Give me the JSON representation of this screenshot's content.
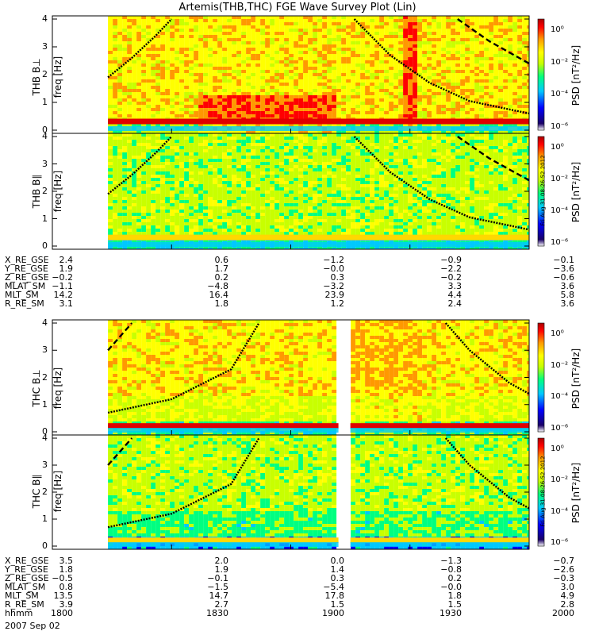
{
  "title": "Artemis(THB,THC) FGE Wave Survey Plot (Lin)",
  "colorbar": {
    "label": "PSD [nT²/Hz]",
    "ticks": [
      "10⁰",
      "10⁻²",
      "10⁻⁴",
      "10⁻⁶"
    ],
    "stops": [
      "#ffffff",
      "#1a0066",
      "#0000ff",
      "#00c8ff",
      "#00ff80",
      "#c8ff00",
      "#ffff00",
      "#ff9900",
      "#ff0000",
      "#aa0000"
    ]
  },
  "stamp": "Fri Aug 31 08:26:52 2012",
  "panels": [
    {
      "id": "thb-bperp",
      "ylabel": "THB B⊥",
      "freq_label": "freq [Hz]"
    },
    {
      "id": "thb-bpar",
      "ylabel": "THB B∥",
      "freq_label": "freq [Hz]"
    },
    {
      "id": "thc-bperp",
      "ylabel": "THC B⊥",
      "freq_label": "freq [Hz]"
    },
    {
      "id": "thc-bpar",
      "ylabel": "THC B∥",
      "freq_label": "freq [Hz]"
    }
  ],
  "yticks": [
    "4",
    "3",
    "2",
    "1",
    "0"
  ],
  "ephem_thb": {
    "names": [
      "X_RE_GSE",
      "Y_RE_GSE",
      "Z_RE_GSE",
      "MLAT_SM",
      "MLT_SM",
      "R_RE_SM"
    ],
    "rows": [
      [
        "2.4",
        "0.6",
        "−1.2",
        "−0.9",
        "−0.1"
      ],
      [
        "1.9",
        "1.7",
        "−0.0",
        "−2.2",
        "−3.6"
      ],
      [
        "−0.2",
        "0.2",
        "0.3",
        "−0.2",
        "−0.6"
      ],
      [
        "−1.1",
        "−4.8",
        "−3.2",
        "3.3",
        "3.6"
      ],
      [
        "14.2",
        "16.4",
        "23.9",
        "4.4",
        "5.8"
      ],
      [
        "3.1",
        "1.8",
        "1.2",
        "2.4",
        "3.6"
      ]
    ]
  },
  "ephem_thc": {
    "names": [
      "X_RE_GSE",
      "Y_RE_GSE",
      "Z_RE_GSE",
      "MLAT_SM",
      "MLT_SM",
      "R_RE_SM",
      "hhmm"
    ],
    "rows": [
      [
        "3.5",
        "2.0",
        "0.0",
        "−1.3",
        "−0.7"
      ],
      [
        "1.8",
        "1.9",
        "1.4",
        "−0.8",
        "−2.6"
      ],
      [
        "−0.5",
        "−0.1",
        "0.3",
        "0.2",
        "−0.3"
      ],
      [
        "0.8",
        "−1.5",
        "−5.4",
        "−0.0",
        "3.0"
      ],
      [
        "13.5",
        "14.7",
        "17.8",
        "1.8",
        "4.9"
      ],
      [
        "3.9",
        "2.7",
        "1.5",
        "1.5",
        "2.8"
      ],
      [
        "1800",
        "1830",
        "1900",
        "1930",
        "2000"
      ]
    ]
  },
  "date": "2007 Sep 02",
  "chart_data": {
    "type": "heatmap",
    "title": "Artemis(THB,THC) FGE Wave Survey Plot (Lin)",
    "xlabel": "hhmm",
    "x_ticks": [
      "1800",
      "1830",
      "1900",
      "1930",
      "2000"
    ],
    "ylabel": "freq [Hz]",
    "ylim": [
      0,
      4
    ],
    "colorbar_range_log10": [
      -6,
      1
    ],
    "series": [
      {
        "name": "THB B⊥",
        "data_start_hhmm": "1814",
        "data_gap": [],
        "strong_band_hz": 0.3,
        "curve_solid": [
          [
            "1814",
            1.9
          ],
          [
            "1820",
            2.6
          ],
          [
            "1826",
            3.4
          ],
          [
            "1830",
            4.0
          ]
        ],
        "curve_solid_2": [
          [
            "1916",
            4.0
          ],
          [
            "1925",
            2.7
          ],
          [
            "1935",
            1.7
          ],
          [
            "1945",
            1.05
          ],
          [
            "1955",
            0.75
          ],
          [
            "2000",
            0.6
          ]
        ],
        "curve_dashed": [
          [
            "1942",
            4.0
          ],
          [
            "1950",
            3.2
          ],
          [
            "2000",
            2.4
          ]
        ]
      },
      {
        "name": "THB B∥",
        "data_start_hhmm": "1814",
        "data_gap": [],
        "strong_band_hz": 0.3,
        "curve_solid": [
          [
            "1814",
            1.9
          ],
          [
            "1820",
            2.6
          ],
          [
            "1826",
            3.4
          ],
          [
            "1830",
            4.0
          ]
        ],
        "curve_solid_2": [
          [
            "1916",
            4.0
          ],
          [
            "1925",
            2.7
          ],
          [
            "1935",
            1.7
          ],
          [
            "1945",
            1.05
          ],
          [
            "1955",
            0.75
          ],
          [
            "2000",
            0.6
          ]
        ],
        "curve_dashed": [
          [
            "1942",
            4.0
          ],
          [
            "1950",
            3.2
          ],
          [
            "2000",
            2.4
          ]
        ]
      },
      {
        "name": "THC B⊥",
        "data_start_hhmm": "1814",
        "data_gap": [
          "1912",
          "1915"
        ],
        "strong_band_hz": 0.2,
        "curve_solid": [
          [
            "1814",
            0.7
          ],
          [
            "1830",
            1.2
          ],
          [
            "1845",
            2.3
          ],
          [
            "1852",
            4.0
          ]
        ],
        "curve_solid_2": [
          [
            "1939",
            4.0
          ],
          [
            "1945",
            3.0
          ],
          [
            "1955",
            1.8
          ],
          [
            "2000",
            1.4
          ]
        ],
        "curve_dashed": [
          [
            "1814",
            3.0
          ],
          [
            "1820",
            4.0
          ]
        ]
      },
      {
        "name": "THC B∥",
        "data_start_hhmm": "1814",
        "data_gap": [
          "1912",
          "1915"
        ],
        "strong_band_hz": 0.2,
        "curve_solid": [
          [
            "1814",
            0.7
          ],
          [
            "1830",
            1.2
          ],
          [
            "1845",
            2.3
          ],
          [
            "1852",
            4.0
          ]
        ],
        "curve_solid_2": [
          [
            "1939",
            4.0
          ],
          [
            "1945",
            3.0
          ],
          [
            "1955",
            1.8
          ],
          [
            "2000",
            1.4
          ]
        ],
        "curve_dashed": [
          [
            "1814",
            3.0
          ],
          [
            "1820",
            4.0
          ]
        ]
      }
    ]
  }
}
